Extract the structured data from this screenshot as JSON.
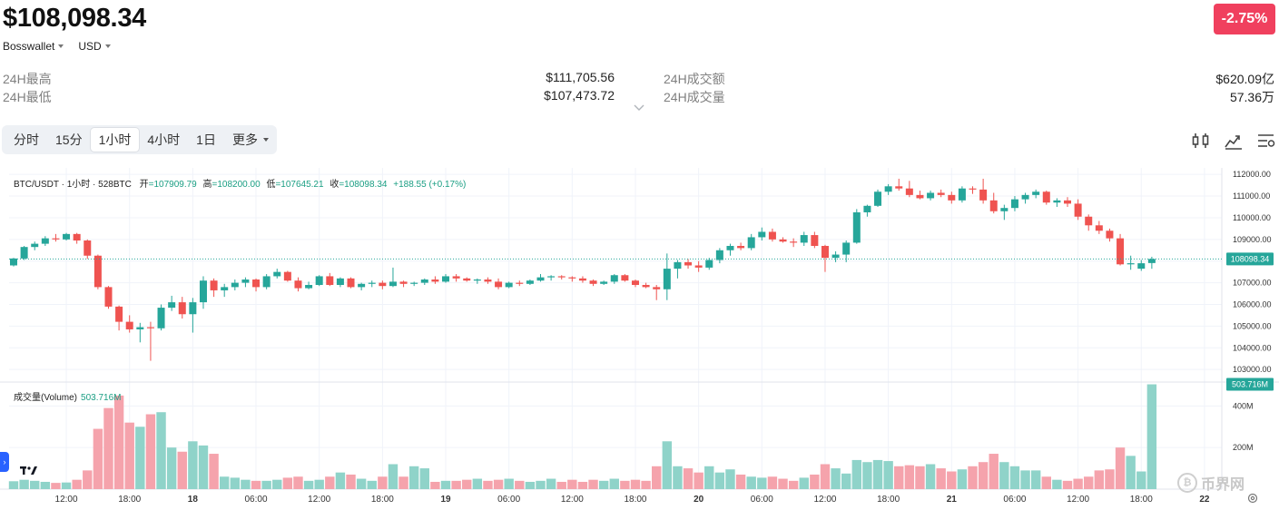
{
  "header": {
    "price": "$108,098.34",
    "change": "-2.75%",
    "change_color": "#f0405e",
    "wallet_label": "Bosswallet",
    "currency_label": "USD"
  },
  "stats": {
    "high_label": "24H最高",
    "high_value": "$111,705.56",
    "low_label": "24H最低",
    "low_value": "$107,473.72",
    "turnover_label": "24H成交额",
    "turnover_value": "$620.09亿",
    "volume_label": "24H成交量",
    "volume_value": "57.36万"
  },
  "timeframes": {
    "items": [
      "分时",
      "15分",
      "1小时",
      "4小时",
      "1日"
    ],
    "active_index": 2,
    "more_label": "更多"
  },
  "icons": {
    "toolbar": [
      "indicator-icon",
      "compare-chart-icon",
      "settings-list-icon"
    ],
    "expand": "chevron-down-icon",
    "tradingview": "tradingview-logo-icon",
    "settings": "chart-settings-icon"
  },
  "legend": {
    "pair": "BTC/USDT · 1小时 · 528BTC",
    "open_label": "开",
    "open": "=107909.79",
    "high_label": "高",
    "high": "=108200.00",
    "low_label": "低",
    "low": "=107645.21",
    "close_label": "收",
    "close": "=108098.34",
    "change": "+188.55 (+0.17%)"
  },
  "volume_legend": {
    "label": "成交量(Volume)",
    "value": "503.716M"
  },
  "watermark": {
    "text": "币界网"
  },
  "colors": {
    "up": "#26a69a",
    "down": "#ef5350",
    "up_volume": "#8fd3c9",
    "down_volume": "#f5a3ac",
    "price_tag": "#26a69a",
    "grid": "#f0f3fa"
  },
  "chart_data": {
    "type": "candlestick",
    "price_axis": {
      "ticks": [
        "112000.00",
        "111000.00",
        "110000.00",
        "109000.00",
        "108000.00",
        "107000.00",
        "106000.00",
        "105000.00",
        "104000.00",
        "103000.00"
      ],
      "tick_values": [
        112000,
        111000,
        110000,
        109000,
        108000,
        107000,
        106000,
        105000,
        104000,
        103000
      ],
      "range": [
        102420,
        112300
      ],
      "current_price_label": "108098.34",
      "current_price": 108098.34
    },
    "volume_axis": {
      "ticks": [
        "400M",
        "200M"
      ],
      "tick_values": [
        400,
        200
      ],
      "max": 515,
      "last_label": "503.716M"
    },
    "time_axis": {
      "labels": [
        "12:00",
        "18:00",
        "18",
        "06:00",
        "12:00",
        "18:00",
        "19",
        "06:00",
        "12:00",
        "18:00",
        "20",
        "06:00",
        "12:00",
        "18:00",
        "21",
        "06:00",
        "12:00",
        "18:00",
        "22"
      ],
      "label_positions_candles": [
        5,
        11,
        17,
        23,
        29,
        35,
        41,
        47,
        53,
        59,
        65,
        71,
        77,
        83,
        89,
        95,
        101,
        107,
        113
      ],
      "bold": [
        false,
        false,
        true,
        false,
        false,
        false,
        true,
        false,
        false,
        false,
        true,
        false,
        false,
        false,
        true,
        false,
        false,
        false,
        true
      ]
    },
    "candles": [
      [
        107800,
        108150,
        107750,
        108120,
        38
      ],
      [
        108120,
        108700,
        108050,
        108650,
        45
      ],
      [
        108650,
        108900,
        108500,
        108800,
        40
      ],
      [
        108800,
        109150,
        108700,
        109050,
        35
      ],
      [
        109050,
        109250,
        108900,
        109000,
        30
      ],
      [
        109000,
        109300,
        108950,
        109250,
        32
      ],
      [
        109250,
        109300,
        108800,
        108950,
        45
      ],
      [
        108950,
        109000,
        108100,
        108250,
        90
      ],
      [
        108250,
        108300,
        106700,
        106800,
        290
      ],
      [
        106800,
        106850,
        105800,
        105900,
        390
      ],
      [
        105900,
        105950,
        104800,
        105200,
        450
      ],
      [
        105200,
        105500,
        104700,
        104850,
        320
      ],
      [
        104850,
        105150,
        104250,
        104950,
        300
      ],
      [
        104950,
        105200,
        103400,
        104900,
        360
      ],
      [
        104900,
        106000,
        104800,
        105850,
        370
      ],
      [
        105850,
        106400,
        105700,
        106100,
        200
      ],
      [
        106100,
        106350,
        105350,
        105550,
        180
      ],
      [
        105550,
        106300,
        104700,
        106100,
        230
      ],
      [
        106100,
        107300,
        105800,
        107100,
        210
      ],
      [
        107100,
        107200,
        106350,
        106650,
        170
      ],
      [
        106650,
        106950,
        106350,
        106800,
        60
      ],
      [
        106800,
        107150,
        106650,
        107000,
        55
      ],
      [
        107000,
        107250,
        106800,
        107150,
        45
      ],
      [
        107150,
        107200,
        106600,
        106800,
        40
      ],
      [
        106800,
        107400,
        106700,
        107300,
        40
      ],
      [
        107300,
        107650,
        107200,
        107500,
        45
      ],
      [
        107500,
        107550,
        107050,
        107100,
        55
      ],
      [
        107100,
        107250,
        106600,
        106750,
        60
      ],
      [
        106750,
        107050,
        106700,
        106900,
        40
      ],
      [
        106900,
        107350,
        106850,
        107300,
        45
      ],
      [
        107300,
        107450,
        106850,
        106900,
        60
      ],
      [
        106900,
        107250,
        106800,
        107200,
        80
      ],
      [
        107200,
        107250,
        106750,
        106800,
        70
      ],
      [
        106800,
        107000,
        106650,
        106950,
        50
      ],
      [
        106950,
        107100,
        106800,
        107000,
        40
      ],
      [
        107000,
        107100,
        106700,
        106850,
        60
      ],
      [
        106850,
        107700,
        106800,
        107050,
        120
      ],
      [
        107050,
        107100,
        106800,
        106950,
        60
      ],
      [
        106950,
        107050,
        106850,
        107000,
        110
      ],
      [
        107000,
        107200,
        106900,
        107150,
        100
      ],
      [
        107150,
        107300,
        106950,
        107050,
        35
      ],
      [
        107050,
        107400,
        107000,
        107300,
        40
      ],
      [
        107300,
        107400,
        107050,
        107200,
        40
      ],
      [
        107200,
        107250,
        107050,
        107100,
        45
      ],
      [
        107100,
        107200,
        106950,
        107150,
        50
      ],
      [
        107150,
        107250,
        106950,
        107050,
        40
      ],
      [
        107050,
        107200,
        106700,
        106800,
        45
      ],
      [
        106800,
        107050,
        106750,
        107000,
        50
      ],
      [
        107000,
        107100,
        106850,
        106950,
        40
      ],
      [
        106950,
        107150,
        106900,
        107100,
        35
      ],
      [
        107100,
        107400,
        107050,
        107250,
        40
      ],
      [
        107250,
        107350,
        107100,
        107300,
        50
      ],
      [
        107300,
        107350,
        107150,
        107250,
        35
      ],
      [
        107250,
        107300,
        107050,
        107200,
        45
      ],
      [
        107200,
        107300,
        107000,
        107100,
        35
      ],
      [
        107100,
        107150,
        106850,
        106950,
        45
      ],
      [
        106950,
        107100,
        106900,
        107050,
        40
      ],
      [
        107050,
        107400,
        106950,
        107350,
        50
      ],
      [
        107350,
        107400,
        107050,
        107100,
        40
      ],
      [
        107100,
        107150,
        106800,
        106900,
        45
      ],
      [
        106900,
        107000,
        106750,
        106800,
        40
      ],
      [
        106800,
        106900,
        106200,
        106700,
        110
      ],
      [
        106700,
        108350,
        106200,
        107650,
        230
      ],
      [
        107650,
        108050,
        107200,
        107950,
        110
      ],
      [
        107950,
        108100,
        107650,
        107800,
        100
      ],
      [
        107800,
        108000,
        107500,
        107700,
        80
      ],
      [
        107700,
        108150,
        107600,
        108050,
        110
      ],
      [
        108050,
        108600,
        107900,
        108500,
        80
      ],
      [
        108500,
        108800,
        108250,
        108700,
        95
      ],
      [
        108700,
        108850,
        108500,
        108600,
        70
      ],
      [
        108600,
        109250,
        108500,
        109100,
        60
      ],
      [
        109100,
        109550,
        108950,
        109350,
        55
      ],
      [
        109350,
        109500,
        108900,
        109000,
        60
      ],
      [
        109000,
        109100,
        108850,
        108900,
        50
      ],
      [
        108900,
        109050,
        108650,
        108850,
        40
      ],
      [
        108850,
        109350,
        108700,
        109200,
        55
      ],
      [
        109200,
        109350,
        108600,
        108700,
        70
      ],
      [
        108700,
        108750,
        107500,
        108150,
        120
      ],
      [
        108150,
        108450,
        107950,
        108300,
        100
      ],
      [
        108300,
        108950,
        107950,
        108850,
        75
      ],
      [
        108850,
        110400,
        108800,
        110250,
        140
      ],
      [
        110250,
        110600,
        110050,
        110550,
        130
      ],
      [
        110550,
        111300,
        110500,
        111200,
        140
      ],
      [
        111200,
        111550,
        111050,
        111450,
        135
      ],
      [
        111450,
        111800,
        111250,
        111350,
        110
      ],
      [
        111350,
        111700,
        110950,
        111050,
        115
      ],
      [
        111050,
        111250,
        110850,
        110900,
        110
      ],
      [
        110900,
        111250,
        110800,
        111150,
        120
      ],
      [
        111150,
        111300,
        110950,
        111050,
        100
      ],
      [
        111050,
        111200,
        110650,
        110800,
        85
      ],
      [
        110800,
        111450,
        110700,
        111350,
        95
      ],
      [
        111350,
        111450,
        111100,
        111300,
        110
      ],
      [
        111300,
        111800,
        110650,
        110800,
        130
      ],
      [
        110800,
        111150,
        110200,
        110300,
        170
      ],
      [
        110300,
        110600,
        109900,
        110450,
        130
      ],
      [
        110450,
        111000,
        110300,
        110850,
        110
      ],
      [
        110850,
        111150,
        110650,
        111050,
        90
      ],
      [
        111050,
        111300,
        110900,
        111200,
        90
      ],
      [
        111200,
        111250,
        110600,
        110700,
        60
      ],
      [
        110700,
        110900,
        110500,
        110800,
        45
      ],
      [
        110800,
        110950,
        110500,
        110650,
        40
      ],
      [
        110650,
        110850,
        109900,
        110050,
        50
      ],
      [
        110050,
        110150,
        109400,
        109650,
        60
      ],
      [
        109650,
        109850,
        109250,
        109400,
        90
      ],
      [
        109400,
        109500,
        108900,
        109050,
        95
      ],
      [
        109050,
        109250,
        107800,
        107850,
        200
      ],
      [
        107850,
        108250,
        107600,
        107900,
        160
      ],
      [
        107650,
        108050,
        107550,
        107900,
        85
      ],
      [
        107909.79,
        108200,
        107645.21,
        108098.34,
        504
      ]
    ]
  }
}
